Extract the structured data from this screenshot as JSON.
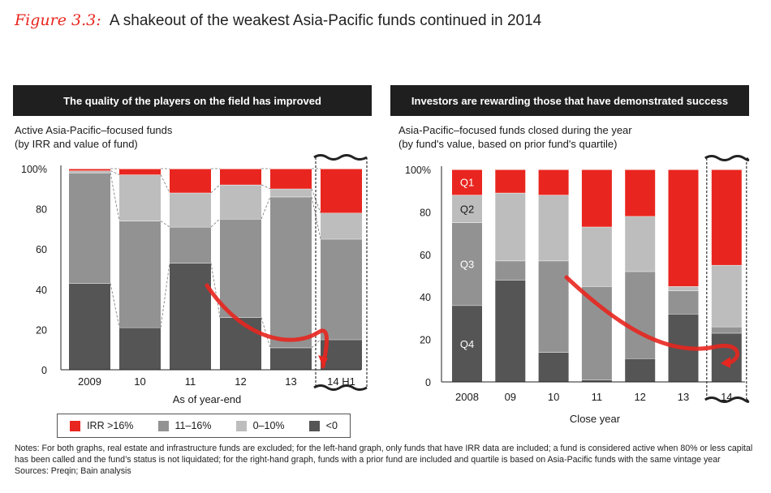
{
  "figure": {
    "label": "Figure 3.3:",
    "title": "A shakeout of the weakest Asia-Pacific funds continued in 2014"
  },
  "colors": {
    "irr_high": "#e8261f",
    "irr_mid": "#929292",
    "irr_low": "#bdbdbd",
    "irr_neg": "#555555",
    "q1": "#e8261f",
    "q2": "#bdbdbd",
    "q3": "#929292",
    "q4": "#555555",
    "header_bg": "#1f1f1f"
  },
  "left_panel": {
    "header": "The quality of the players on the field has improved",
    "subtitle_line1": "Active Asia-Pacific–focused funds",
    "subtitle_line2": "(by IRR and value of fund)",
    "xlabel": "As of year-end"
  },
  "right_panel": {
    "header": "Investors are rewarding those that have demonstrated success",
    "subtitle_line1": "Asia-Pacific–focused funds closed during the year",
    "subtitle_line2": "(by fund's value, based on prior fund's quartile)",
    "xlabel": "Close year"
  },
  "legend": {
    "items": [
      {
        "label": "IRR >16%",
        "color_key": "irr_high"
      },
      {
        "label": "11–16%",
        "color_key": "irr_mid"
      },
      {
        "label": "0–10%",
        "color_key": "irr_low"
      },
      {
        "label": "<0",
        "color_key": "irr_neg"
      }
    ]
  },
  "notes": {
    "line1": "Notes: For both graphs, real estate and infrastructure funds are excluded; for the left-hand graph, only funds that have IRR data are included; a fund is considered active when 80% or less capital has been called and the fund’s status is not liquidated; for the right-hand graph, funds with a prior fund are included and quartile is based on Asia-Pacific funds with the same vintage year",
    "line2": "Sources: Preqin; Bain analysis"
  },
  "chart_data": [
    {
      "type": "bar",
      "stacked": true,
      "xlabel": "As of year-end",
      "ylabel": "",
      "ylim": [
        0,
        100
      ],
      "yticks": [
        "0",
        "20",
        "40",
        "60",
        "80",
        "100%"
      ],
      "categories": [
        "2009",
        "10",
        "11",
        "12",
        "13",
        "14 H1"
      ],
      "highlighted_category": "14 H1",
      "series": [
        {
          "name": "<0",
          "color_key": "irr_neg",
          "values": [
            43,
            21,
            53,
            26,
            11,
            15
          ]
        },
        {
          "name": "11–16%",
          "color_key": "irr_mid",
          "values": [
            55,
            53,
            18,
            49,
            75,
            50
          ]
        },
        {
          "name": "0–10%",
          "color_key": "irr_low",
          "values": [
            1,
            23,
            17,
            17,
            4,
            13
          ]
        },
        {
          "name": "IRR >16%",
          "color_key": "irr_high",
          "values": [
            1,
            3,
            12,
            8,
            10,
            22
          ]
        }
      ]
    },
    {
      "type": "bar",
      "stacked": true,
      "xlabel": "Close year",
      "ylabel": "",
      "ylim": [
        0,
        100
      ],
      "yticks": [
        "0",
        "20",
        "40",
        "60",
        "80",
        "100%"
      ],
      "categories": [
        "2008",
        "09",
        "10",
        "11",
        "12",
        "13",
        "14"
      ],
      "highlighted_category": "14",
      "series": [
        {
          "name": "Q4",
          "color_key": "q4",
          "values": [
            36,
            48,
            14,
            1,
            11,
            32,
            23
          ]
        },
        {
          "name": "Q3",
          "color_key": "q3",
          "values": [
            39,
            9,
            43,
            44,
            41,
            11,
            3
          ]
        },
        {
          "name": "Q2",
          "color_key": "q2",
          "values": [
            13,
            32,
            31,
            28,
            26,
            2,
            29
          ]
        },
        {
          "name": "Q1",
          "color_key": "q1",
          "values": [
            12,
            11,
            12,
            27,
            22,
            55,
            45
          ]
        }
      ],
      "segment_labels": [
        "Q4",
        "Q3",
        "Q2",
        "Q1"
      ],
      "segment_labels_on_category": "2008"
    }
  ]
}
